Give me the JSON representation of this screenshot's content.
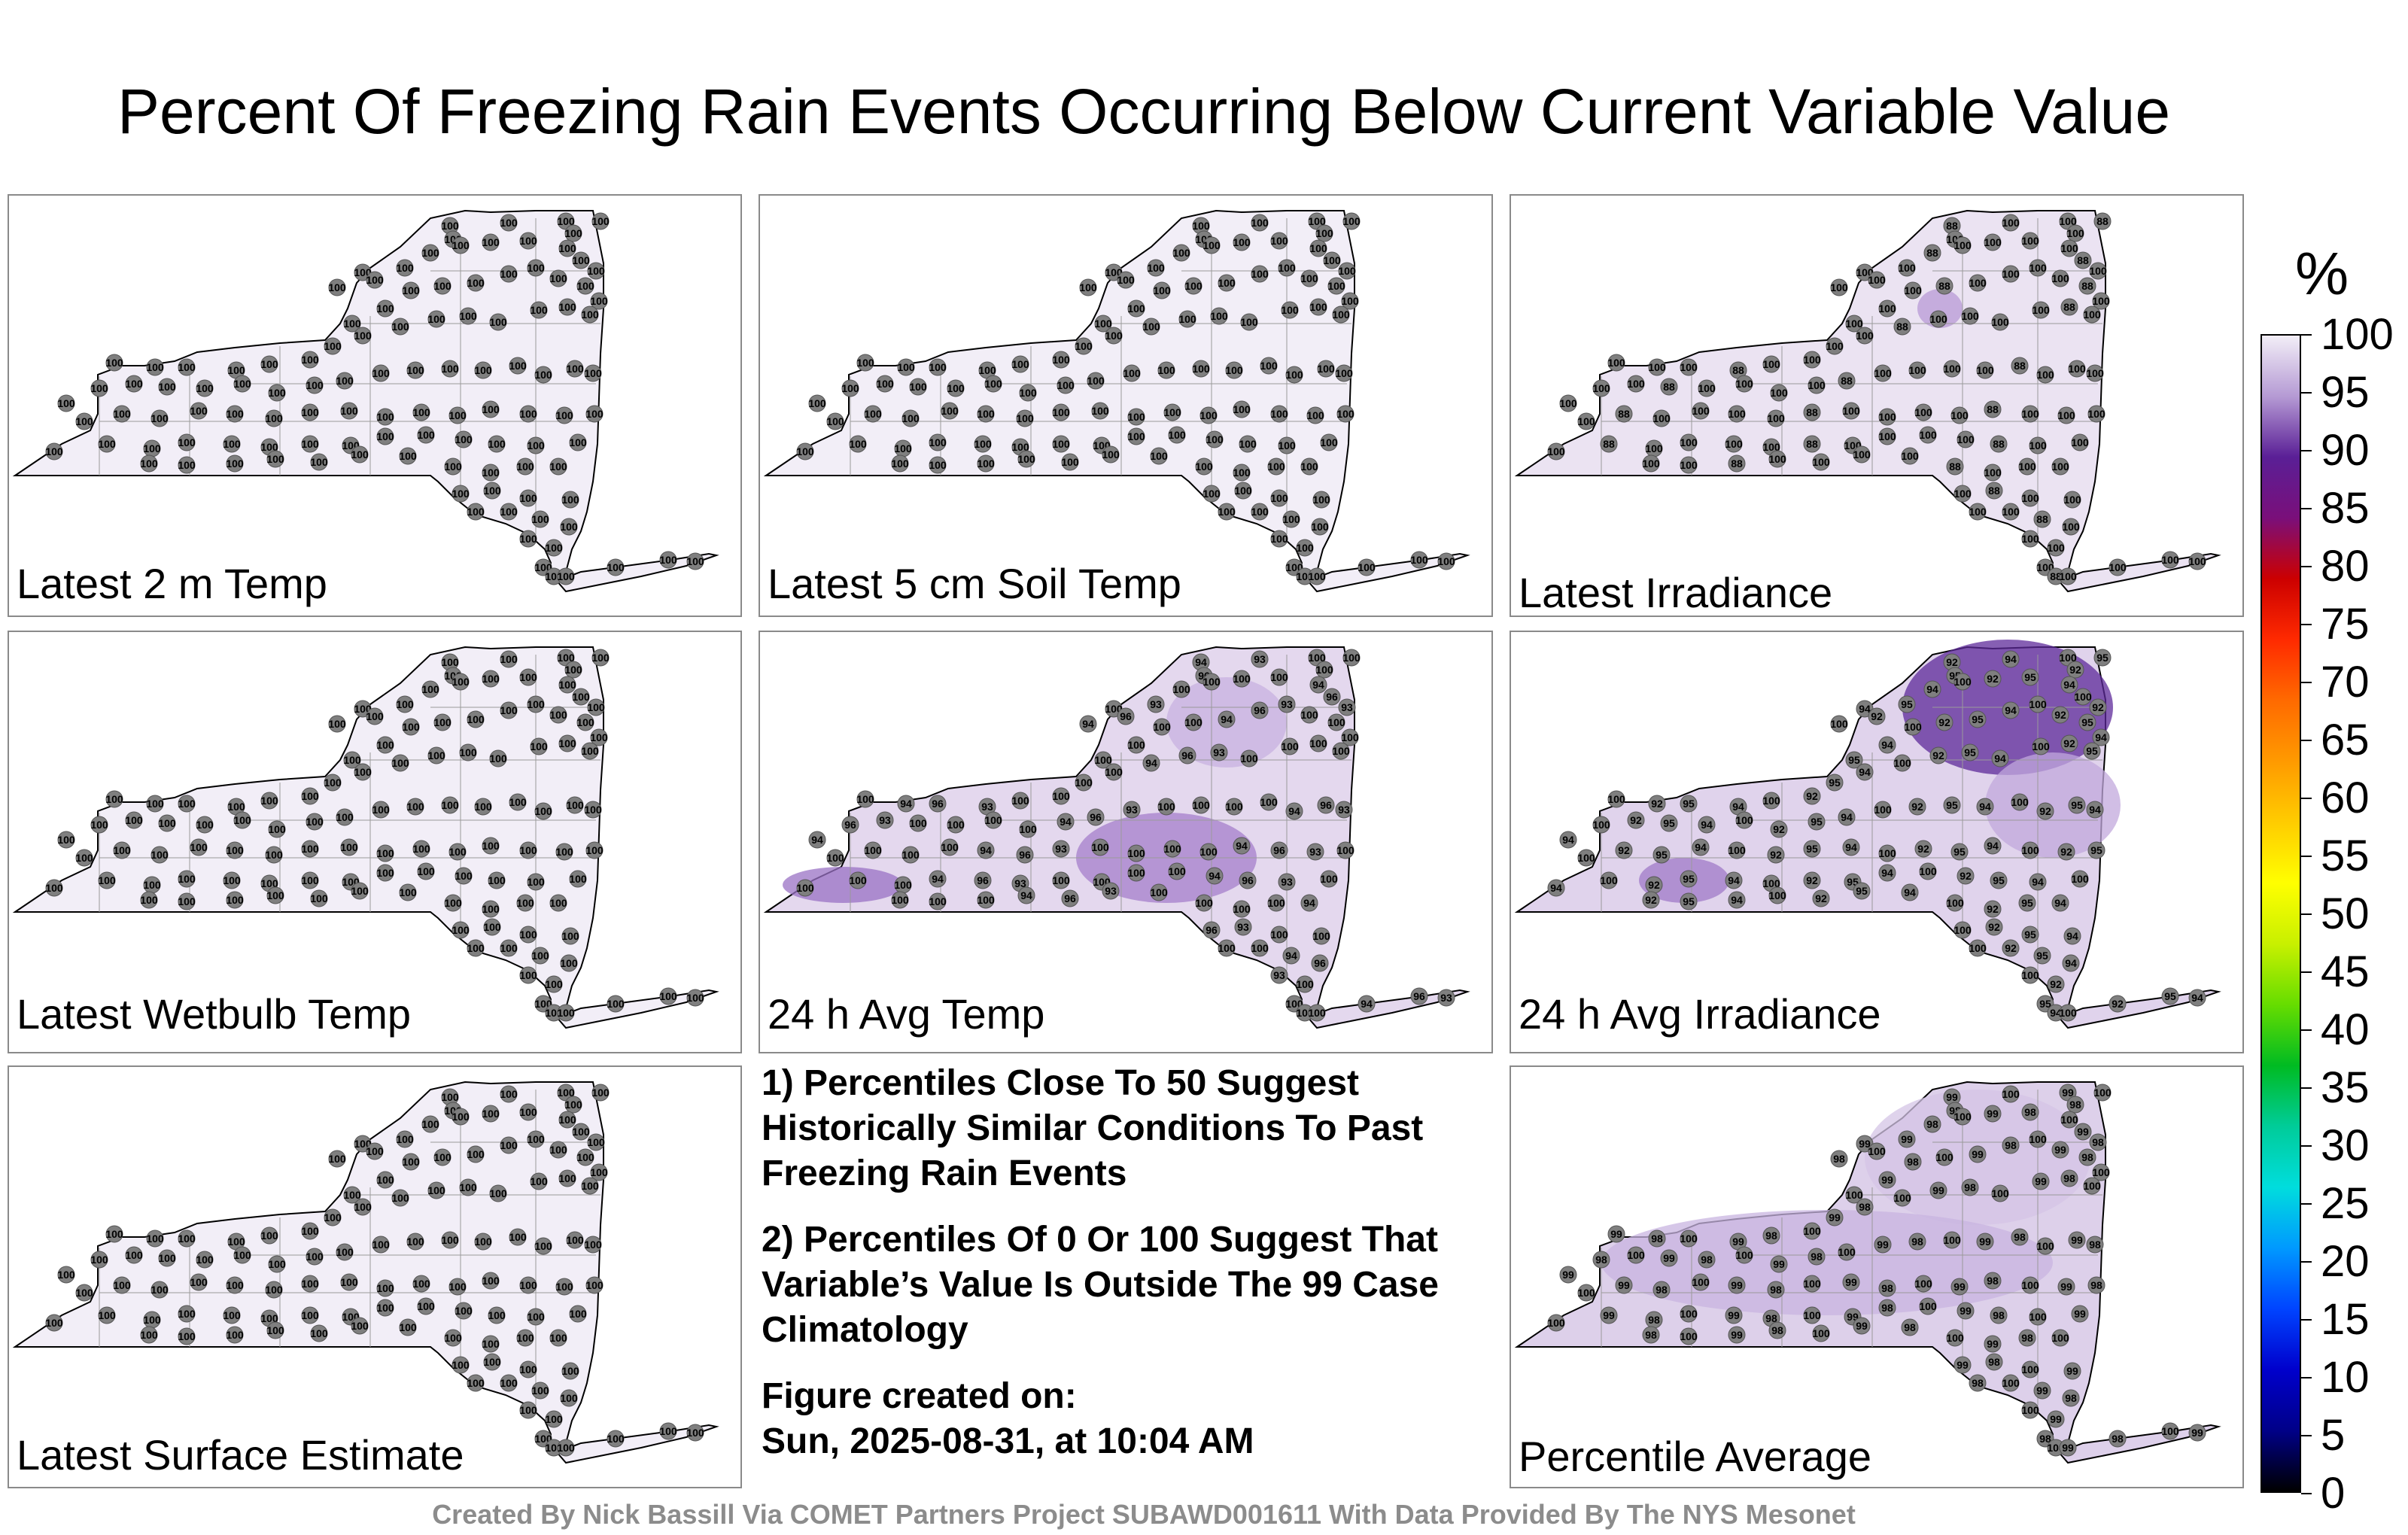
{
  "title": "Percent Of Freezing Rain Events Occurring Below Current Variable Value",
  "panels": [
    {
      "label": "Latest 2 m Temp",
      "shade": "#f2eef7",
      "highlights": []
    },
    {
      "label": "Latest 5 cm Soil Temp",
      "shade": "#f2eef7",
      "highlights": []
    },
    {
      "label": "Latest Irradiance",
      "shade": "#ebe3f2",
      "highlights": [
        {
          "value": "88",
          "color": "#b89ad6"
        }
      ]
    },
    {
      "label": "Latest Wetbulb Temp",
      "shade": "#f2eef7",
      "highlights": []
    },
    {
      "label": "24 h Avg Temp",
      "shade": "#e4d8ee",
      "highlights": [
        {
          "value": "94",
          "color": "#a57fcb"
        },
        {
          "value": "96",
          "color": "#c8b2e0"
        },
        {
          "value": "93",
          "color": "#9a72c4"
        }
      ]
    },
    {
      "label": "24 h Avg Irradiance",
      "shade": "#e0d3ec",
      "highlights": [
        {
          "value": "92",
          "color": "#5e2a9a"
        },
        {
          "value": "95",
          "color": "#c2a8dc"
        },
        {
          "value": "94",
          "color": "#a07ac8"
        }
      ]
    },
    {
      "label": "Latest Surface Estimate",
      "shade": "#f2eef7",
      "highlights": []
    },
    {
      "label": "Percentile Average",
      "shade": "#ddd0ea",
      "highlights": [
        {
          "value": "99",
          "color": "#d4c4e6"
        },
        {
          "value": "98",
          "color": "#c8b4e0"
        }
      ]
    }
  ],
  "station_value_default": "100",
  "notes": [
    "1) Percentiles Close To 50 Suggest Historically Similar Conditions To Past Freezing Rain Events",
    "2) Percentiles Of 0 Or 100 Suggest That Variable’s Value Is Outside The 99 Case Climatology"
  ],
  "created": {
    "label": "Figure created on:",
    "value": "Sun, 2025-08-31, at 10:04 AM"
  },
  "footer": "Created By Nick Bassill Via COMET Partners Project SUBAWD001611 With Data Provided By The NYS Mesonet",
  "colorbar": {
    "unit": "%",
    "ticks": [
      "100",
      "95",
      "90",
      "85",
      "80",
      "75",
      "70",
      "65",
      "60",
      "55",
      "50",
      "45",
      "40",
      "35",
      "30",
      "25",
      "20",
      "15",
      "10",
      "5",
      "0"
    ],
    "colors": [
      "#f2eef7",
      "#b59ad4",
      "#5a1f96",
      "#7a0f7a",
      "#cc0000",
      "#ff2a00",
      "#ff6a00",
      "#ff9a00",
      "#ffcc00",
      "#ffff00",
      "#c8f000",
      "#66dd00",
      "#00bb22",
      "#00cc99",
      "#00dddd",
      "#0099ff",
      "#0044ff",
      "#0000cc",
      "#000088",
      "#000000"
    ]
  }
}
